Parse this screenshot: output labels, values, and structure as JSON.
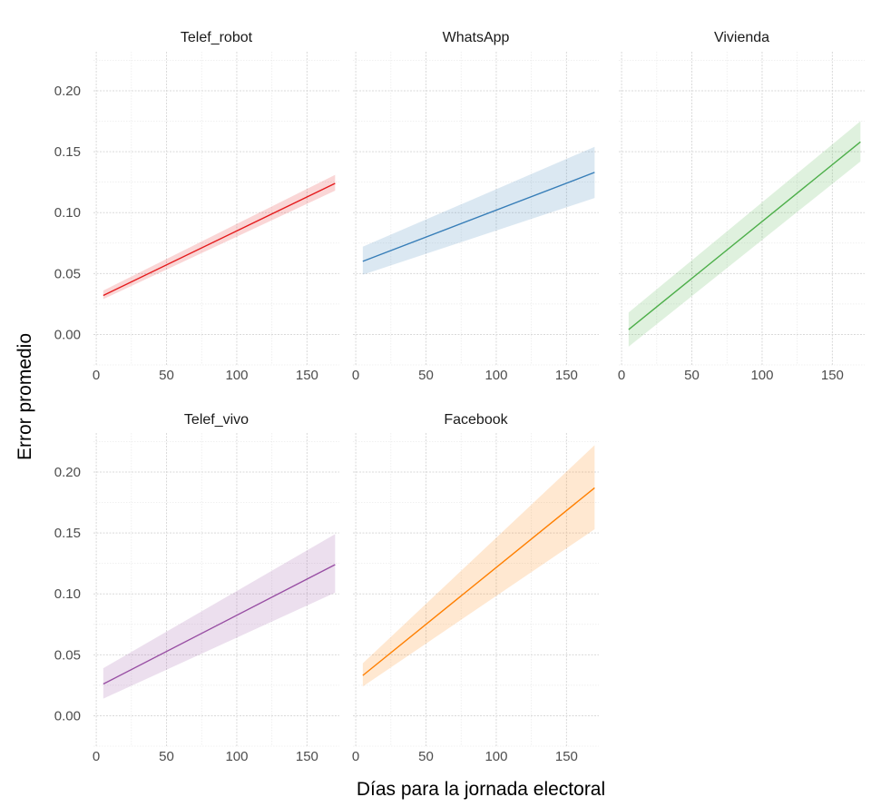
{
  "chart_data": {
    "type": "line",
    "xlabel": "Días para la jornada electoral",
    "ylabel": "Error promedio",
    "x_ticks": [
      0,
      50,
      100,
      150
    ],
    "y_ticks": [
      "0.00",
      "0.05",
      "0.10",
      "0.15",
      "0.20"
    ],
    "xlim": [
      -2,
      173
    ],
    "ylim": [
      -0.025,
      0.232
    ],
    "grid": true,
    "legend": "none",
    "panels": [
      {
        "name": "Telef_robot",
        "color": "#e41a1c",
        "x": [
          5,
          170
        ],
        "y": [
          0.032,
          0.124
        ],
        "band_lower": [
          0.029,
          0.118
        ],
        "band_upper": [
          0.036,
          0.131
        ]
      },
      {
        "name": "WhatsApp",
        "color": "#377eb8",
        "x": [
          5,
          170
        ],
        "y": [
          0.06,
          0.133
        ],
        "band_lower": [
          0.049,
          0.112
        ],
        "band_upper": [
          0.072,
          0.154
        ]
      },
      {
        "name": "Vivienda",
        "color": "#4daf4a",
        "x": [
          5,
          170
        ],
        "y": [
          0.004,
          0.158
        ],
        "band_lower": [
          -0.01,
          0.142
        ],
        "band_upper": [
          0.018,
          0.175
        ]
      },
      {
        "name": "Telef_vivo",
        "color": "#984ea3",
        "x": [
          5,
          170
        ],
        "y": [
          0.026,
          0.124
        ],
        "band_lower": [
          0.014,
          0.101
        ],
        "band_upper": [
          0.039,
          0.149
        ]
      },
      {
        "name": "Facebook",
        "color": "#ff7f00",
        "x": [
          5,
          170
        ],
        "y": [
          0.033,
          0.187
        ],
        "band_lower": [
          0.024,
          0.153
        ],
        "band_upper": [
          0.043,
          0.222
        ]
      }
    ]
  }
}
